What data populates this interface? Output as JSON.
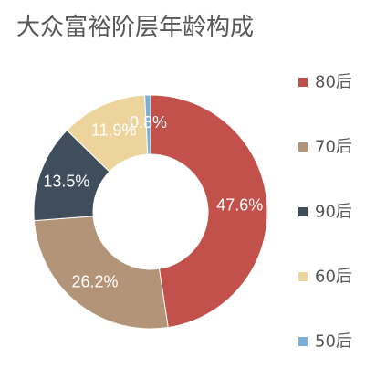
{
  "chart_data": {
    "type": "pie",
    "donut": true,
    "title": "大众富裕阶层年龄构成",
    "slices": [
      {
        "label": "80后",
        "value": 47.6,
        "value_label": "47.6%",
        "color": "#c1514a"
      },
      {
        "label": "70后",
        "value": 26.2,
        "value_label": "26.2%",
        "color": "#b39478"
      },
      {
        "label": "90后",
        "value": 13.5,
        "value_label": "13.5%",
        "color": "#3f4d5c"
      },
      {
        "label": "60后",
        "value": 11.9,
        "value_label": "11.9%",
        "color": "#edd49c"
      },
      {
        "label": "50后",
        "value": 0.8,
        "value_label": "0.8%",
        "color": "#7aaed6"
      }
    ],
    "legend": {
      "position": "right"
    }
  }
}
